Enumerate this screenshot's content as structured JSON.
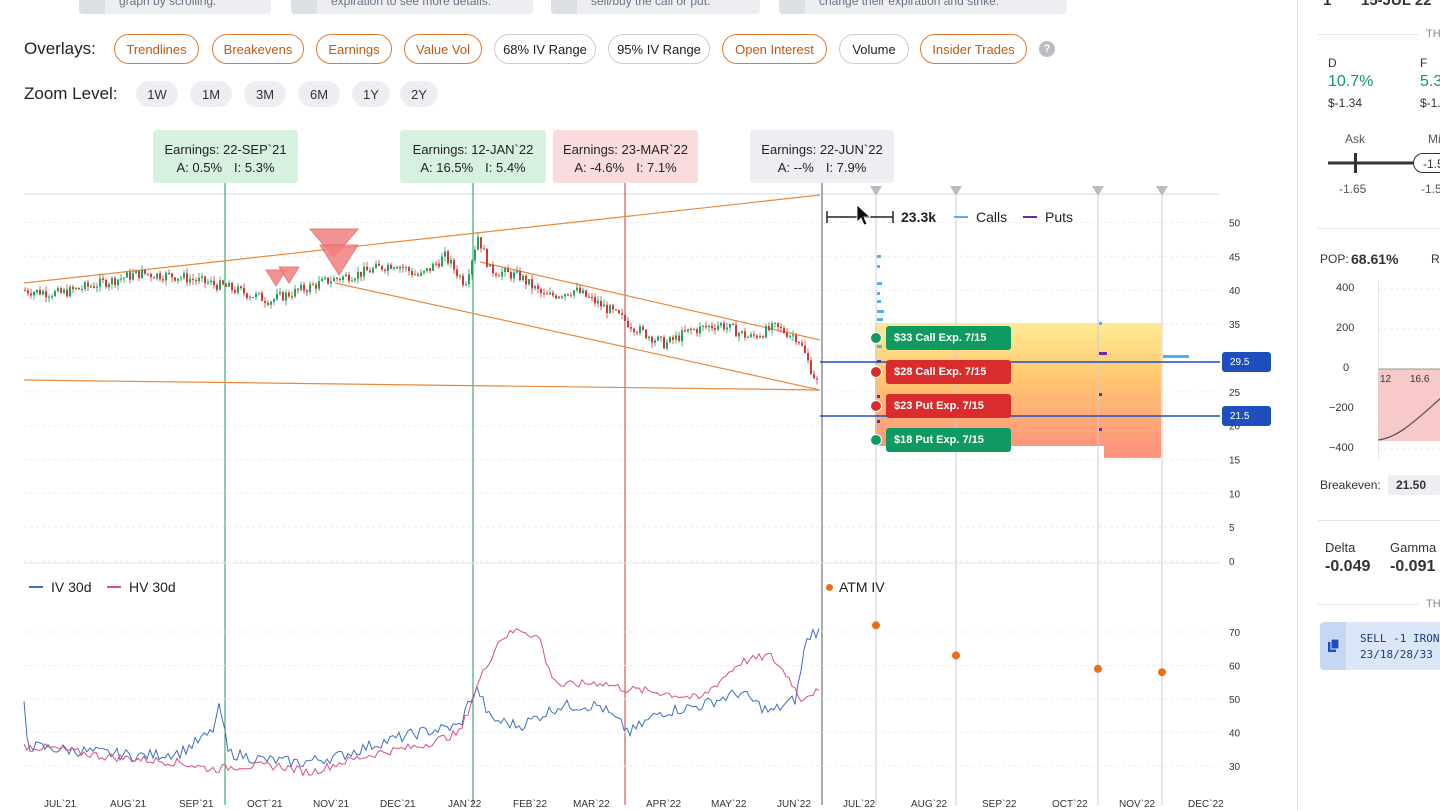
{
  "hints": [
    {
      "text": "graph by scrolling."
    },
    {
      "text": "expiration to see more details."
    },
    {
      "text": "sell/buy the call or put."
    },
    {
      "text": "change their expiration and strike."
    }
  ],
  "overlays": {
    "label": "Overlays:",
    "items": [
      "Trendlines",
      "Breakevens",
      "Earnings",
      "Value Vol",
      "68% IV Range",
      "95% IV Range",
      "Open Interest",
      "Volume",
      "Insider Trades"
    ],
    "help": "?"
  },
  "zoom": {
    "label": "Zoom Level:",
    "items": [
      "1W",
      "1M",
      "3M",
      "6M",
      "1Y",
      "2Y"
    ]
  },
  "earnings": [
    {
      "title": "Earnings: 22-SEP`21",
      "a": "A: 0.5%",
      "i": "I: 5.3%"
    },
    {
      "title": "Earnings: 12-JAN`22",
      "a": "A: 16.5%",
      "i": "I: 5.4%"
    },
    {
      "title": "Earnings: 23-MAR`22",
      "a": "A: -4.6%",
      "i": "I: 7.1%"
    },
    {
      "title": "Earnings: 22-JUN`22",
      "a": "A: --%",
      "i": "I: 7.9%"
    }
  ],
  "volume_legend": {
    "scale": "23.3k",
    "calls": "Calls",
    "puts": "Puts"
  },
  "price_axis": [
    "50",
    "45",
    "40",
    "35",
    "30",
    "25",
    "20",
    "15",
    "10",
    "5",
    "0"
  ],
  "price_tags": {
    "upper": "29.5",
    "lower": "21.5"
  },
  "options": [
    {
      "label": "$33 Call Exp. 7/15",
      "color": "#0e9a60",
      "dot": "#0e9a60"
    },
    {
      "label": "$28 Call Exp. 7/15",
      "color": "#d92d2d",
      "dot": "#d92d2d"
    },
    {
      "label": "$23 Put Exp. 7/15",
      "color": "#d92d2d",
      "dot": "#d92d2d"
    },
    {
      "label": "$18 Put Exp. 7/15",
      "color": "#0e9a60",
      "dot": "#0e9a60"
    }
  ],
  "iv_legend": {
    "iv": "IV 30d",
    "hv": "HV 30d",
    "atm": "ATM IV"
  },
  "iv_axis": [
    "70",
    "60",
    "50",
    "40",
    "30"
  ],
  "months": [
    "JUL`21",
    "AUG`21",
    "SEP`21",
    "OCT`21",
    "NOV`21",
    "DEC`21",
    "JAN`22",
    "FEB`22",
    "MAR`22",
    "APR`22",
    "MAY`22",
    "JUN`22",
    "JUL`22",
    "AUG`22",
    "SEP`22",
    "OCT`22",
    "NOV`22",
    "DEC`22"
  ],
  "chart_data": [
    {
      "type": "line",
      "name": "price",
      "ylim": [
        0,
        52
      ],
      "trendlines": "on",
      "expirations": [
        "JUL`22",
        "AUG`22",
        "OCT`22",
        "NOV`22"
      ],
      "markers": {
        "upper_price": 29.5,
        "lower_price": 21.5
      }
    },
    {
      "type": "line",
      "ylim": [
        25,
        75
      ],
      "series": [
        {
          "name": "IV 30d",
          "color": "#3b6fc4"
        },
        {
          "name": "HV 30d",
          "color": "#d94f86"
        },
        {
          "name": "ATM IV",
          "color": "#e8701a",
          "values": [
            72,
            63,
            59,
            58
          ]
        }
      ]
    }
  ],
  "panel": {
    "top_left": "1",
    "top_right": "15-JUL 22",
    "th1": "TH",
    "d_label": "D",
    "d_value": "10.7%",
    "d_sub": "$-1.34",
    "f_label": "F",
    "f_value": "5.3",
    "f_sub": "$-1.",
    "ask": "Ask",
    "mid": "Mi",
    "ask_val": "-1.65",
    "mid_pill": "-1.5",
    "mid_val": "-1.5",
    "pop_label": "POP:",
    "pop_value": "68.61%",
    "r_label": "R",
    "pl_axis": [
      "400",
      "200",
      "0",
      "−200",
      "−400"
    ],
    "pl_x": [
      "12",
      "16.6"
    ],
    "breakeven_label": "Breakeven:",
    "breakeven_value": "21.50",
    "delta_label": "Delta",
    "delta_value": "-0.049",
    "gamma_label": "Gamma",
    "gamma_value": "-0.091",
    "th2": "TH",
    "trade_line1": "SELL -1 IRON",
    "trade_line2": "23/18/28/33"
  }
}
